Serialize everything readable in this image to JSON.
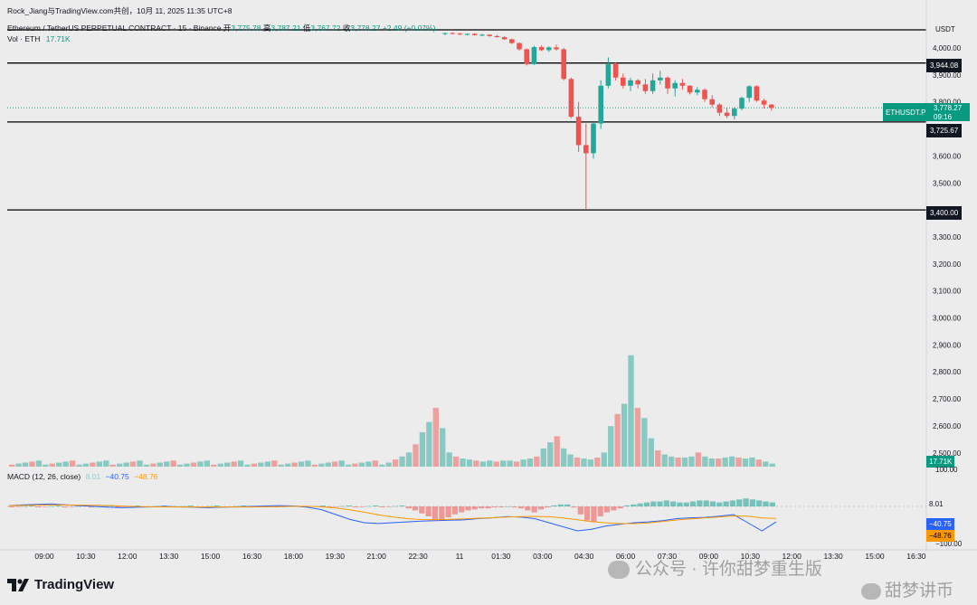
{
  "header": {
    "title_line": "Rock_Jiang与TradingView.com共创，10月 11, 2025 11:35 UTC+8",
    "symbol_line_prefix": "Ethereum / TetherUS PERPETUAL CONTRACT · 15 · Binance",
    "ohlc": {
      "open_label": "开",
      "open": "3,775.78",
      "high_label": "高",
      "high": "3,787.21",
      "low_label": "低",
      "low": "3,767.72",
      "close_label": "收",
      "close": "3,778.27",
      "change": "+2.49 (+0.07%)"
    },
    "vol_label": "Vol · ETH",
    "vol_value": "17.71K"
  },
  "price_axis": {
    "currency": "USDT",
    "ticks": [
      "4,000.00",
      "3,900.00",
      "3,800.00",
      "3,700.00",
      "3,600.00",
      "3,500.00",
      "3,400.00",
      "3,300.00",
      "3,200.00",
      "3,100.00",
      "3,000.00",
      "2,900.00",
      "2,800.00",
      "2,700.00",
      "2,600.00",
      "2,500.00"
    ]
  },
  "levels": {
    "top_line": "",
    "l1": "3,944.08",
    "l2": "3,725.67",
    "l3": "3,400.00"
  },
  "current_price": {
    "symbol": "ETHUSDT.P",
    "price": "3,778.27",
    "countdown": "09:16"
  },
  "volume_badge": "17.71K",
  "macd": {
    "label": "MACD (12, 26, close)",
    "hist": "8.01",
    "macd_value": "−40.75",
    "signal_value": "−48.76",
    "axis_top": "100.00",
    "axis_bottom": "−100.00",
    "flag_hist": "8.01",
    "flag_macd": "−40.75",
    "flag_signal": "−48.76"
  },
  "time_axis": [
    "09:00",
    "10:30",
    "12:00",
    "13:30",
    "15:00",
    "16:30",
    "18:00",
    "19:30",
    "21:00",
    "22:30",
    "11",
    "01:30",
    "03:00",
    "04:30",
    "06:00",
    "07:30",
    "09:00",
    "10:30",
    "12:00",
    "13:30",
    "15:00",
    "16:30"
  ],
  "footer": {
    "brand": "TradingView",
    "watermark1": "公众号 · 许你甜梦重生版",
    "watermark2": "甜梦讲币"
  },
  "colors": {
    "up": "#26a69a",
    "down": "#ef5350",
    "macd_line": "#2962ff",
    "signal_line": "#ff9800"
  }
}
